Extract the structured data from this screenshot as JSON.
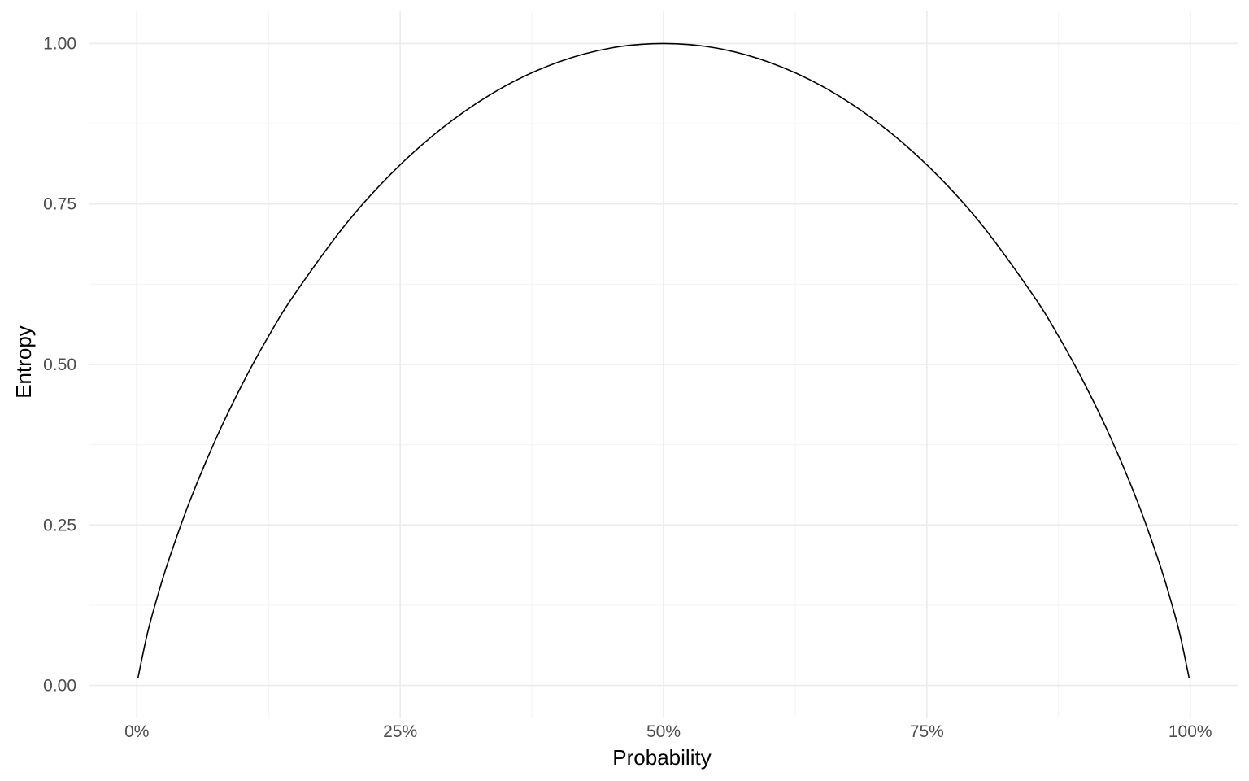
{
  "chart_data": {
    "type": "line",
    "title": "",
    "xlabel": "Probability",
    "ylabel": "Entropy",
    "xlim": [
      -0.045,
      1.045
    ],
    "ylim": [
      -0.05,
      1.05
    ],
    "x_ticks": [
      0,
      0.25,
      0.5,
      0.75,
      1.0
    ],
    "x_tick_labels": [
      "0%",
      "25%",
      "50%",
      "75%",
      "100%"
    ],
    "y_ticks": [
      0,
      0.25,
      0.5,
      0.75,
      1.0
    ],
    "y_tick_labels": [
      "0.00",
      "0.25",
      "0.50",
      "0.75",
      "1.00"
    ],
    "grid": true,
    "legend": "none",
    "series": [
      {
        "color": "#000000",
        "x": [
          0.001,
          0.01,
          0.02,
          0.03,
          0.05,
          0.075,
          0.1,
          0.125,
          0.15,
          0.2,
          0.25,
          0.3,
          0.35,
          0.4,
          0.45,
          0.5,
          0.55,
          0.6,
          0.65,
          0.7,
          0.75,
          0.8,
          0.85,
          0.875,
          0.9,
          0.925,
          0.95,
          0.97,
          0.98,
          0.99,
          0.999
        ],
        "y": [
          0.011,
          0.081,
          0.141,
          0.194,
          0.286,
          0.384,
          0.469,
          0.544,
          0.61,
          0.722,
          0.811,
          0.881,
          0.934,
          0.971,
          0.993,
          1.0,
          0.993,
          0.971,
          0.934,
          0.881,
          0.811,
          0.722,
          0.61,
          0.544,
          0.469,
          0.384,
          0.286,
          0.194,
          0.141,
          0.081,
          0.011
        ]
      }
    ]
  }
}
